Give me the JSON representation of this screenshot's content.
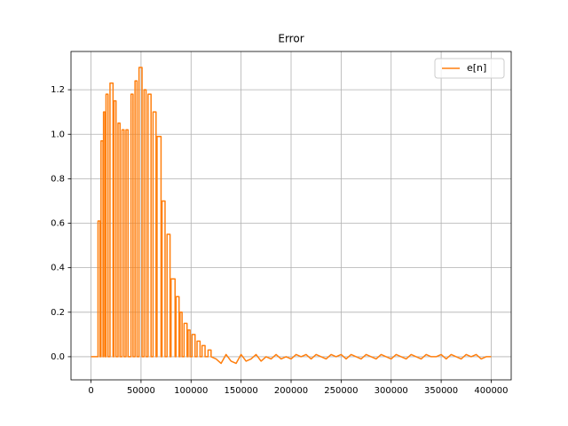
{
  "chart_data": {
    "type": "line",
    "title": "Error",
    "x": [
      0,
      7000,
      7000,
      9000,
      9000,
      10000,
      10000,
      12000,
      12000,
      12500,
      12500,
      14000,
      14000,
      15000,
      15000,
      17000,
      17000,
      19000,
      19000,
      22000,
      22000,
      23000,
      23000,
      25000,
      25000,
      27000,
      27000,
      29000,
      29000,
      31000,
      31000,
      33000,
      33000,
      35000,
      35000,
      37000,
      37000,
      40000,
      40000,
      42000,
      42000,
      44000,
      44000,
      46000,
      46000,
      48000,
      48000,
      51000,
      51000,
      53000,
      53000,
      55000,
      55000,
      57000,
      57000,
      60000,
      60000,
      62000,
      62000,
      65000,
      65000,
      66000,
      66000,
      70000,
      70000,
      71000,
      71000,
      74000,
      74000,
      76000,
      76000,
      79000,
      79000,
      80000,
      80000,
      84000,
      84000,
      85000,
      85000,
      88000,
      88000,
      89000,
      89000,
      91000,
      91000,
      93000,
      93000,
      96000,
      96000,
      97000,
      97000,
      99000,
      99000,
      101000,
      101000,
      104000,
      104000,
      106000,
      106000,
      109000,
      109000,
      111000,
      111000,
      114000,
      114000,
      117000,
      117000,
      120000,
      120000,
      125000,
      130000,
      135000,
      140000,
      145000,
      150000,
      155000,
      160000,
      165000,
      170000,
      175000,
      180000,
      185000,
      190000,
      195000,
      200000,
      205000,
      210000,
      215000,
      220000,
      225000,
      230000,
      235000,
      240000,
      245000,
      250000,
      255000,
      260000,
      265000,
      270000,
      275000,
      280000,
      285000,
      290000,
      295000,
      300000,
      305000,
      310000,
      315000,
      320000,
      325000,
      330000,
      335000,
      340000,
      345000,
      350000,
      355000,
      360000,
      365000,
      370000,
      375000,
      380000,
      385000,
      390000,
      395000,
      400000
    ],
    "series": [
      {
        "name": "e[n]",
        "color": "#ff7f0e",
        "values": [
          0,
          0,
          0.61,
          0.61,
          0,
          0,
          0.97,
          0.97,
          0,
          0,
          1.1,
          1.1,
          0,
          0,
          1.18,
          1.18,
          0,
          0,
          1.23,
          1.23,
          0,
          0,
          1.15,
          1.15,
          0,
          0,
          1.05,
          1.05,
          0,
          0,
          1.02,
          1.02,
          0,
          0,
          1.02,
          1.02,
          0,
          0,
          1.18,
          1.18,
          0,
          0,
          1.24,
          1.24,
          0,
          0,
          1.3,
          1.3,
          0,
          0,
          1.2,
          1.2,
          0,
          0,
          1.18,
          1.18,
          0,
          0,
          1.1,
          1.1,
          0,
          0,
          0.99,
          0.99,
          0,
          0,
          0.7,
          0.7,
          0,
          0,
          0.55,
          0.55,
          0,
          0,
          0.35,
          0.35,
          0,
          0,
          0.27,
          0.27,
          0,
          0,
          0.2,
          0.2,
          0,
          0,
          0.15,
          0.15,
          0,
          0,
          0.12,
          0.12,
          0,
          0,
          0.1,
          0.1,
          0,
          0,
          0.07,
          0.07,
          0,
          0,
          0.05,
          0.05,
          0,
          0,
          0.03,
          0.03,
          0,
          -0.01,
          -0.03,
          0.01,
          -0.02,
          -0.03,
          0.01,
          -0.02,
          -0.01,
          0.01,
          -0.02,
          0,
          -0.01,
          0.01,
          -0.01,
          0,
          -0.01,
          0.01,
          0,
          0.01,
          -0.01,
          0.01,
          0,
          -0.01,
          0.01,
          0,
          0.01,
          -0.01,
          0.01,
          0,
          -0.01,
          0.01,
          0,
          -0.01,
          0.01,
          0,
          -0.01,
          0.01,
          0,
          -0.01,
          0.01,
          0,
          -0.01,
          0.01,
          0,
          0,
          0.01,
          -0.01,
          0.01,
          0,
          -0.01,
          0.01,
          0,
          0.01,
          -0.01,
          0,
          0
        ]
      }
    ],
    "xlim": [
      -20000,
      420000
    ],
    "xticks": [
      0,
      50000,
      100000,
      150000,
      200000,
      250000,
      300000,
      350000,
      400000
    ],
    "ylim": [
      -0.104,
      1.372
    ],
    "yticks": [
      {
        "value": 0,
        "label": "0.0"
      },
      0.2,
      0.4,
      0.6,
      0.8,
      {
        "value": 1,
        "label": "1.0"
      },
      1.2
    ],
    "grid": true,
    "legend": "upper right"
  }
}
